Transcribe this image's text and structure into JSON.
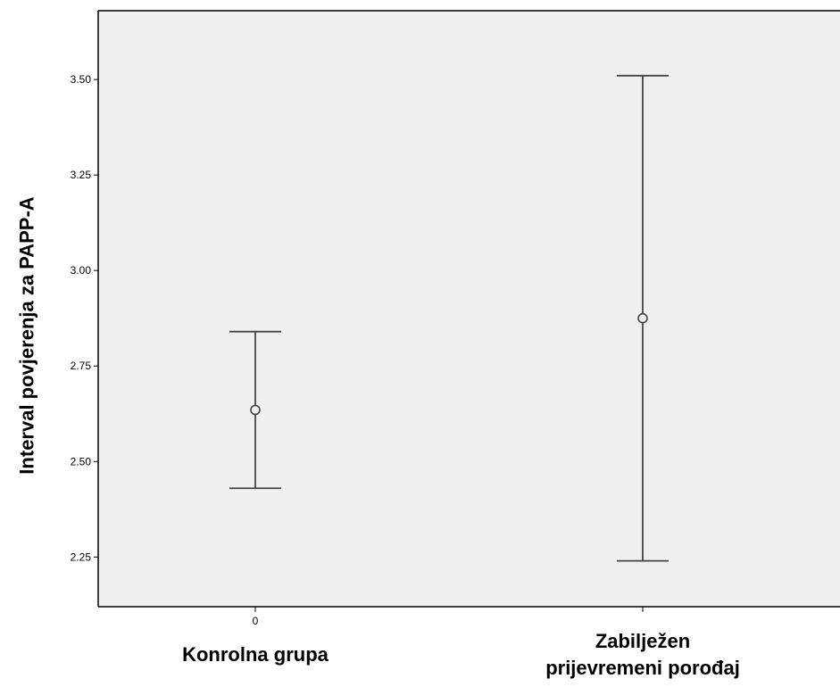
{
  "chart_data": {
    "type": "errorbar",
    "title": "",
    "xlabel": "",
    "ylabel": "Interval povjerenja za PAPP-A",
    "ylim": [
      2.12,
      3.68
    ],
    "yticks": [
      2.25,
      2.5,
      2.75,
      3.0,
      3.25,
      3.5
    ],
    "ytick_labels": [
      "2.25",
      "2.50",
      "2.75",
      "3.00",
      "3.25",
      "3.50"
    ],
    "xtick_labels": [
      "0",
      ""
    ],
    "categories": [
      "Konrolna grupa",
      "Zabilježen prijevremeni porođaj"
    ],
    "category_label_lines": [
      [
        "Konrolna grupa"
      ],
      [
        "Zabilježen",
        "prijevremeni porođaj"
      ]
    ],
    "points": [
      {
        "category": "Konrolna grupa",
        "mean": 2.635,
        "lower": 2.43,
        "upper": 2.84
      },
      {
        "category": "Zabilježen prijevremeni porođaj",
        "mean": 2.875,
        "lower": 2.24,
        "upper": 3.51
      }
    ],
    "grid": false,
    "colors": {
      "plot_background": "#f0f0f0",
      "frame": "#000000",
      "marks": "#444444"
    }
  }
}
